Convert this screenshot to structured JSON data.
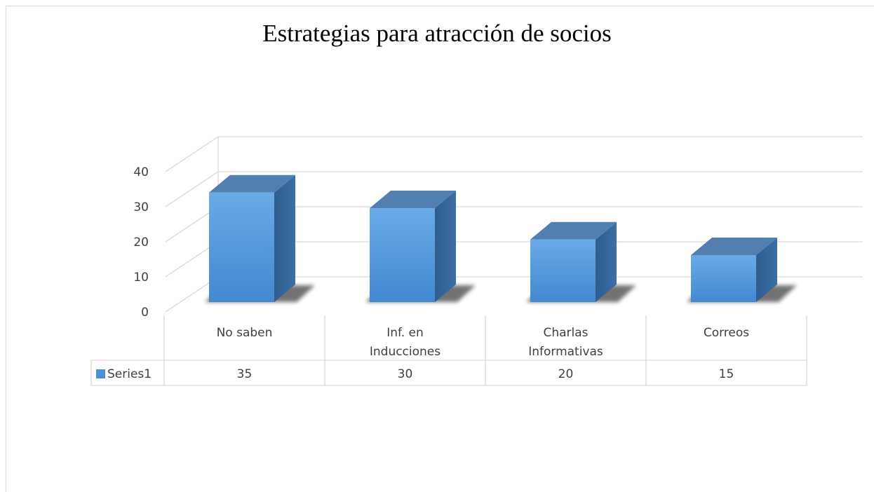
{
  "chart_data": {
    "type": "bar",
    "title": "Estrategias para atracción de socios",
    "categories_lines": [
      [
        "No saben"
      ],
      [
        "Inf. en",
        "Inducciones"
      ],
      [
        "Charlas",
        "Informativas"
      ],
      [
        "Correos"
      ]
    ],
    "series": [
      {
        "name": "Series1",
        "values": [
          35,
          30,
          20,
          15
        ],
        "color": "#4a90d9"
      }
    ],
    "y_ticks": [
      "0",
      "10",
      "20",
      "30",
      "40"
    ],
    "ylim": [
      0,
      40
    ],
    "grid": true,
    "legend": "data-table"
  }
}
